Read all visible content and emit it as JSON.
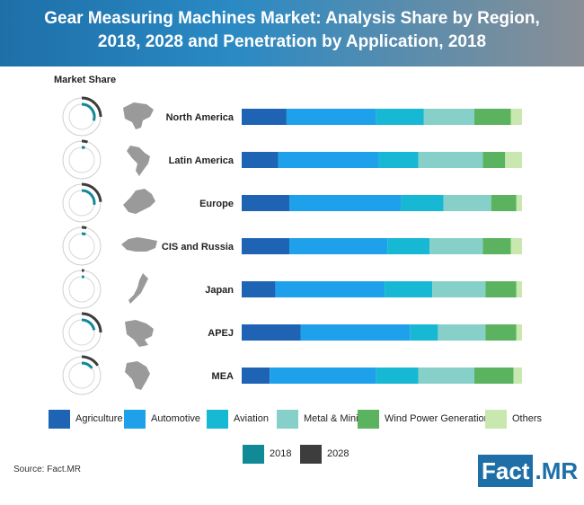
{
  "header": {
    "title_line1": "Gear Measuring Machines Market: Analysis Share by Region,",
    "title_line2": "2018, 2028 and Penetration by Application, 2018"
  },
  "market_share_label": "Market Share",
  "source": "Source: Fact.MR",
  "logo": {
    "part1": "Fact",
    "part2": ".MR"
  },
  "colors": {
    "Agriculture": "#1f63b5",
    "Automotive": "#1ea1ea",
    "Aviation": "#17b8d4",
    "Metal & Mining": "#86d0c9",
    "Wind Power Generation": "#5bb35f",
    "Others": "#c9e8b0",
    "2018": "#0f8a96",
    "2028": "#3d3d3d",
    "header": "#1e6fa8"
  },
  "chart_data": {
    "type": "bar",
    "stacked": true,
    "orientation": "horizontal",
    "ylim": [
      0,
      100
    ],
    "categories": [
      "North America",
      "Latin America",
      "Europe",
      "CIS and Russia",
      "Japan",
      "APEJ",
      "MEA"
    ],
    "series": [
      {
        "name": "Agriculture",
        "values": [
          16,
          13,
          17,
          17,
          12,
          21,
          10
        ]
      },
      {
        "name": "Automotive",
        "values": [
          32,
          36,
          40,
          35,
          39,
          39,
          38
        ]
      },
      {
        "name": "Aviation",
        "values": [
          17,
          14,
          15,
          15,
          17,
          10,
          15
        ]
      },
      {
        "name": "Metal & Mining",
        "values": [
          18,
          23,
          17,
          19,
          19,
          17,
          20
        ]
      },
      {
        "name": "Wind Power Generation",
        "values": [
          13,
          8,
          9,
          10,
          11,
          11,
          14
        ]
      },
      {
        "name": "Others",
        "values": [
          4,
          6,
          2,
          4,
          2,
          2,
          3
        ]
      }
    ],
    "market_share": {
      "2018": [
        30,
        4,
        27,
        5,
        3,
        22,
        15
      ],
      "2028": [
        25,
        5,
        24,
        4,
        2,
        25,
        16
      ]
    },
    "legend": [
      "Agriculture",
      "Automotive",
      "Aviation",
      "Metal & Mining",
      "Wind Power Generation",
      "Others"
    ],
    "legend_rings": [
      "2018",
      "2028"
    ]
  }
}
